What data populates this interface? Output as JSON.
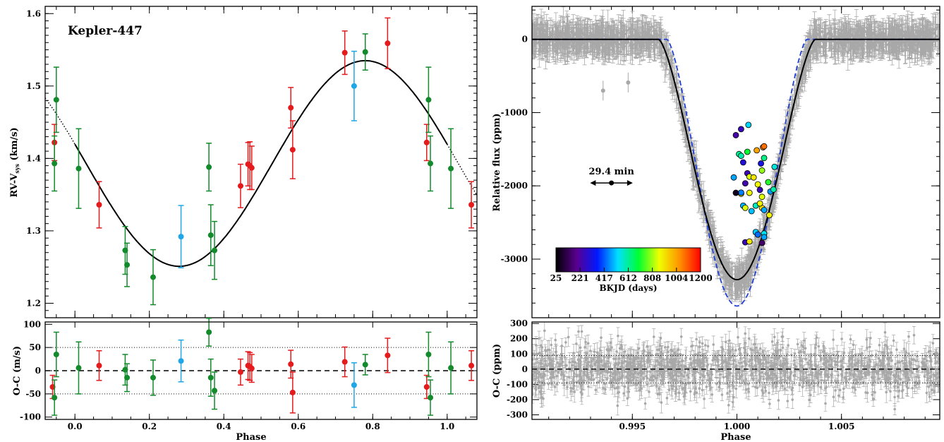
{
  "chart_data": [
    {
      "type": "scatter",
      "panel": "left-top",
      "title": "Kepler-447",
      "xlabel": "",
      "ylabel": "RV-V",
      "ylabel_sub": "sys",
      "ylabel_unit": " (km/s)",
      "xlim": [
        -0.08,
        1.08
      ],
      "ylim": [
        1.18,
        1.61
      ],
      "x_ticks": [
        0.0,
        0.2,
        0.4,
        0.6,
        0.8,
        1.0
      ],
      "x_tick_labels": [
        "0.0",
        "0.2",
        "0.4",
        "0.6",
        "0.8",
        "1.0"
      ],
      "y_ticks": [
        1.2,
        1.3,
        1.4,
        1.5,
        1.6
      ],
      "y_tick_labels": [
        "1.2",
        "1.3",
        "1.4",
        "1.5",
        "1.6"
      ],
      "colors": {
        "red": "#e41a1c",
        "green": "#138a2c",
        "blue": "#1ea6e6"
      },
      "model": {
        "gamma": 1.393,
        "K": 0.142,
        "x_peak": 0.78,
        "solid_range": [
          0.0,
          1.0
        ],
        "dotted": true
      },
      "series": [
        {
          "color": "red",
          "points": [
            {
              "x": -0.055,
              "y": 1.422,
              "err": 0.025
            },
            {
              "x": 0.065,
              "y": 1.336,
              "err": 0.032
            },
            {
              "x": 0.465,
              "y": 1.392,
              "err": 0.03
            },
            {
              "x": 0.475,
              "y": 1.387,
              "err": 0.03
            },
            {
              "x": 0.47,
              "y": 1.39,
              "err": 0.033
            },
            {
              "x": 0.445,
              "y": 1.362,
              "err": 0.03
            },
            {
              "x": 0.58,
              "y": 1.47,
              "err": 0.028
            },
            {
              "x": 0.585,
              "y": 1.412,
              "err": 0.04
            },
            {
              "x": 0.725,
              "y": 1.546,
              "err": 0.03
            },
            {
              "x": 0.84,
              "y": 1.559,
              "err": 0.035
            },
            {
              "x": 0.945,
              "y": 1.422,
              "err": 0.025
            },
            {
              "x": 1.065,
              "y": 1.336,
              "err": 0.032
            }
          ]
        },
        {
          "color": "green",
          "points": [
            {
              "x": -0.05,
              "y": 1.481,
              "err": 0.045
            },
            {
              "x": -0.055,
              "y": 1.393,
              "err": 0.038
            },
            {
              "x": 0.01,
              "y": 1.386,
              "err": 0.055
            },
            {
              "x": 0.135,
              "y": 1.273,
              "err": 0.033
            },
            {
              "x": 0.14,
              "y": 1.253,
              "err": 0.03
            },
            {
              "x": 0.21,
              "y": 1.236,
              "err": 0.038
            },
            {
              "x": 0.36,
              "y": 1.388,
              "err": 0.033
            },
            {
              "x": 0.365,
              "y": 1.294,
              "err": 0.042
            },
            {
              "x": 0.375,
              "y": 1.273,
              "err": 0.04
            },
            {
              "x": 0.78,
              "y": 1.547,
              "err": 0.025
            },
            {
              "x": 0.95,
              "y": 1.481,
              "err": 0.045
            },
            {
              "x": 0.955,
              "y": 1.393,
              "err": 0.038
            },
            {
              "x": 1.01,
              "y": 1.386,
              "err": 0.055
            }
          ]
        },
        {
          "color": "blue",
          "points": [
            {
              "x": 0.285,
              "y": 1.292,
              "err": 0.043
            },
            {
              "x": 0.75,
              "y": 1.5,
              "err": 0.048
            }
          ]
        }
      ]
    },
    {
      "type": "scatter",
      "panel": "left-bottom",
      "xlabel": "Phase",
      "ylabel": "O-C (m/s)",
      "xlim": [
        -0.08,
        1.08
      ],
      "ylim": [
        -105,
        105
      ],
      "x_ticks": [
        0.0,
        0.2,
        0.4,
        0.6,
        0.8,
        1.0
      ],
      "x_tick_labels": [
        "0.0",
        "0.2",
        "0.4",
        "0.6",
        "0.8",
        "1.0"
      ],
      "y_ticks": [
        -100,
        -50,
        0,
        50,
        100
      ],
      "y_tick_labels": [
        "-100",
        "-50",
        "0",
        "50",
        "100"
      ],
      "ref_lines": {
        "dashed": [
          0
        ],
        "dotted": [
          -50,
          50
        ]
      },
      "series": [
        {
          "color": "red",
          "points": [
            {
              "x": -0.06,
              "y": -35,
              "err": 25
            },
            {
              "x": 0.065,
              "y": 11,
              "err": 32
            },
            {
              "x": 0.445,
              "y": -3,
              "err": 28
            },
            {
              "x": 0.465,
              "y": 11,
              "err": 30
            },
            {
              "x": 0.47,
              "y": 9,
              "err": 30
            },
            {
              "x": 0.475,
              "y": 5,
              "err": 30
            },
            {
              "x": 0.58,
              "y": 14,
              "err": 30
            },
            {
              "x": 0.585,
              "y": -47,
              "err": 44
            },
            {
              "x": 0.725,
              "y": 19,
              "err": 32
            },
            {
              "x": 0.84,
              "y": 33,
              "err": 37
            },
            {
              "x": 0.945,
              "y": -35,
              "err": 25
            },
            {
              "x": 1.065,
              "y": 11,
              "err": 32
            }
          ]
        },
        {
          "color": "green",
          "points": [
            {
              "x": -0.055,
              "y": -58,
              "err": 38
            },
            {
              "x": -0.05,
              "y": 35,
              "err": 48
            },
            {
              "x": 0.01,
              "y": 6,
              "err": 56
            },
            {
              "x": 0.135,
              "y": 2,
              "err": 33
            },
            {
              "x": 0.14,
              "y": -15,
              "err": 30
            },
            {
              "x": 0.21,
              "y": -15,
              "err": 38
            },
            {
              "x": 0.36,
              "y": 83,
              "err": 30
            },
            {
              "x": 0.365,
              "y": -15,
              "err": 40
            },
            {
              "x": 0.375,
              "y": -43,
              "err": 40
            },
            {
              "x": 0.78,
              "y": 13,
              "err": 22
            },
            {
              "x": 0.95,
              "y": 35,
              "err": 48
            },
            {
              "x": 0.955,
              "y": -58,
              "err": 38
            },
            {
              "x": 1.01,
              "y": 6,
              "err": 56
            }
          ]
        },
        {
          "color": "blue",
          "points": [
            {
              "x": 0.285,
              "y": 21,
              "err": 45
            },
            {
              "x": 0.75,
              "y": -31,
              "err": 48
            }
          ]
        }
      ]
    },
    {
      "type": "scatter",
      "panel": "right-top",
      "xlabel": "",
      "ylabel": "Relative flux (ppm)",
      "xlim": [
        0.9902,
        1.0097
      ],
      "ylim": [
        -3800,
        450
      ],
      "x_ticks": [
        0.995,
        1.0,
        1.005
      ],
      "y_ticks": [
        0,
        -1000,
        -2000,
        -3000
      ],
      "y_tick_labels": [
        "0",
        "-1000",
        "-2000",
        "-3000"
      ],
      "data_color": "#a8a8a8",
      "model": {
        "depth": -3280,
        "t1": 0.99625,
        "t2": 0.99975,
        "solid": "#000000"
      },
      "alt_model": {
        "depth": -3640,
        "t1": 0.99665,
        "t2": 0.99985,
        "color": "#2040d8"
      },
      "outliers": [
        {
          "x": 0.9936,
          "y": -700
        },
        {
          "x": 0.9948,
          "y": -590
        }
      ],
      "annotation": {
        "text": "29.4 min",
        "x": 0.994,
        "y": -1960,
        "halfwidth": 0.00102
      },
      "colorbar": {
        "label": "BKJD (days)",
        "min": 25,
        "max": 1200,
        "tick_labels": [
          "25",
          "221",
          "417",
          "612",
          "808",
          "1004",
          "1200"
        ],
        "stops": [
          "#000000",
          "#5a0090",
          "#0018ff",
          "#00e0ff",
          "#00ff30",
          "#f0ff00",
          "#ff9000",
          "#ff0000"
        ]
      },
      "colored_points": [
        {
          "x": 0.99995,
          "y": -1308,
          "t": 230
        },
        {
          "x": 1.0002,
          "y": -1226,
          "t": 260
        },
        {
          "x": 1.00055,
          "y": -1168,
          "t": 520
        },
        {
          "x": 1.00095,
          "y": -1515,
          "t": 1000
        },
        {
          "x": 1.00125,
          "y": -1473,
          "t": 1050
        },
        {
          "x": 1.0013,
          "y": -1460,
          "t": 1070
        },
        {
          "x": 1.0001,
          "y": -1566,
          "t": 620
        },
        {
          "x": 1.0002,
          "y": -1590,
          "t": 600
        },
        {
          "x": 1.0003,
          "y": -1680,
          "t": 300
        },
        {
          "x": 1.0005,
          "y": -1535,
          "t": 700
        },
        {
          "x": 1.0013,
          "y": -1620,
          "t": 630
        },
        {
          "x": 1.0005,
          "y": -1828,
          "t": 250
        },
        {
          "x": 0.99985,
          "y": -1885,
          "t": 480
        },
        {
          "x": 1.0006,
          "y": -1875,
          "t": 850
        },
        {
          "x": 1.0008,
          "y": -1885,
          "t": 900
        },
        {
          "x": 1.00115,
          "y": -1695,
          "t": 320
        },
        {
          "x": 1.0012,
          "y": -1790,
          "t": 800
        },
        {
          "x": 1.0018,
          "y": -1740,
          "t": 560
        },
        {
          "x": 1.0004,
          "y": -1965,
          "t": 240
        },
        {
          "x": 1.001,
          "y": -1980,
          "t": 870
        },
        {
          "x": 1.0015,
          "y": -1950,
          "t": 720
        },
        {
          "x": 1.0002,
          "y": -2108,
          "t": 900
        },
        {
          "x": 1.0006,
          "y": -2095,
          "t": 870
        },
        {
          "x": 1.0011,
          "y": -2055,
          "t": 250
        },
        {
          "x": 1.0016,
          "y": -2078,
          "t": 470
        },
        {
          "x": 1.00175,
          "y": -2050,
          "t": 600
        },
        {
          "x": 1.0002,
          "y": -2092,
          "t": 450
        },
        {
          "x": 0.99995,
          "y": -2095,
          "t": 60
        },
        {
          "x": 1.0012,
          "y": -2150,
          "t": 850
        },
        {
          "x": 1.0003,
          "y": -2270,
          "t": 490
        },
        {
          "x": 1.0004,
          "y": -2300,
          "t": 850
        },
        {
          "x": 1.0009,
          "y": -2270,
          "t": 580
        },
        {
          "x": 1.0012,
          "y": -2300,
          "t": 920
        },
        {
          "x": 1.0013,
          "y": -2330,
          "t": 480
        },
        {
          "x": 1.0007,
          "y": -2345,
          "t": 500
        },
        {
          "x": 1.0011,
          "y": -2240,
          "t": 880
        },
        {
          "x": 1.00155,
          "y": -2400,
          "t": 880
        },
        {
          "x": 1.0009,
          "y": -2630,
          "t": 510
        },
        {
          "x": 1.001,
          "y": -2665,
          "t": 430
        },
        {
          "x": 1.0013,
          "y": -2650,
          "t": 540
        },
        {
          "x": 1.0013,
          "y": -2700,
          "t": 480
        },
        {
          "x": 1.0004,
          "y": -2770,
          "t": 250
        },
        {
          "x": 1.0006,
          "y": -2760,
          "t": 900
        },
        {
          "x": 1.0012,
          "y": -2780,
          "t": 150
        }
      ]
    },
    {
      "type": "scatter",
      "panel": "right-bottom",
      "xlabel": "Phase",
      "ylabel": "O-C (ppm)",
      "xlim": [
        0.9902,
        1.0097
      ],
      "ylim": [
        -330,
        310
      ],
      "x_ticks": [
        0.995,
        1.0,
        1.005
      ],
      "x_tick_labels": [
        "0.995",
        "1.000",
        "1.005"
      ],
      "y_ticks": [
        300,
        200,
        100,
        0,
        -100,
        -200,
        -300
      ],
      "y_tick_labels": [
        "300",
        "200",
        "100",
        "0",
        "-100",
        "-200",
        "-300"
      ],
      "ref_lines": {
        "dashed": [
          0
        ],
        "dotted": [
          -90,
          90
        ]
      },
      "data_color": "#a8a8a8",
      "scatter_sigma": 85
    }
  ]
}
